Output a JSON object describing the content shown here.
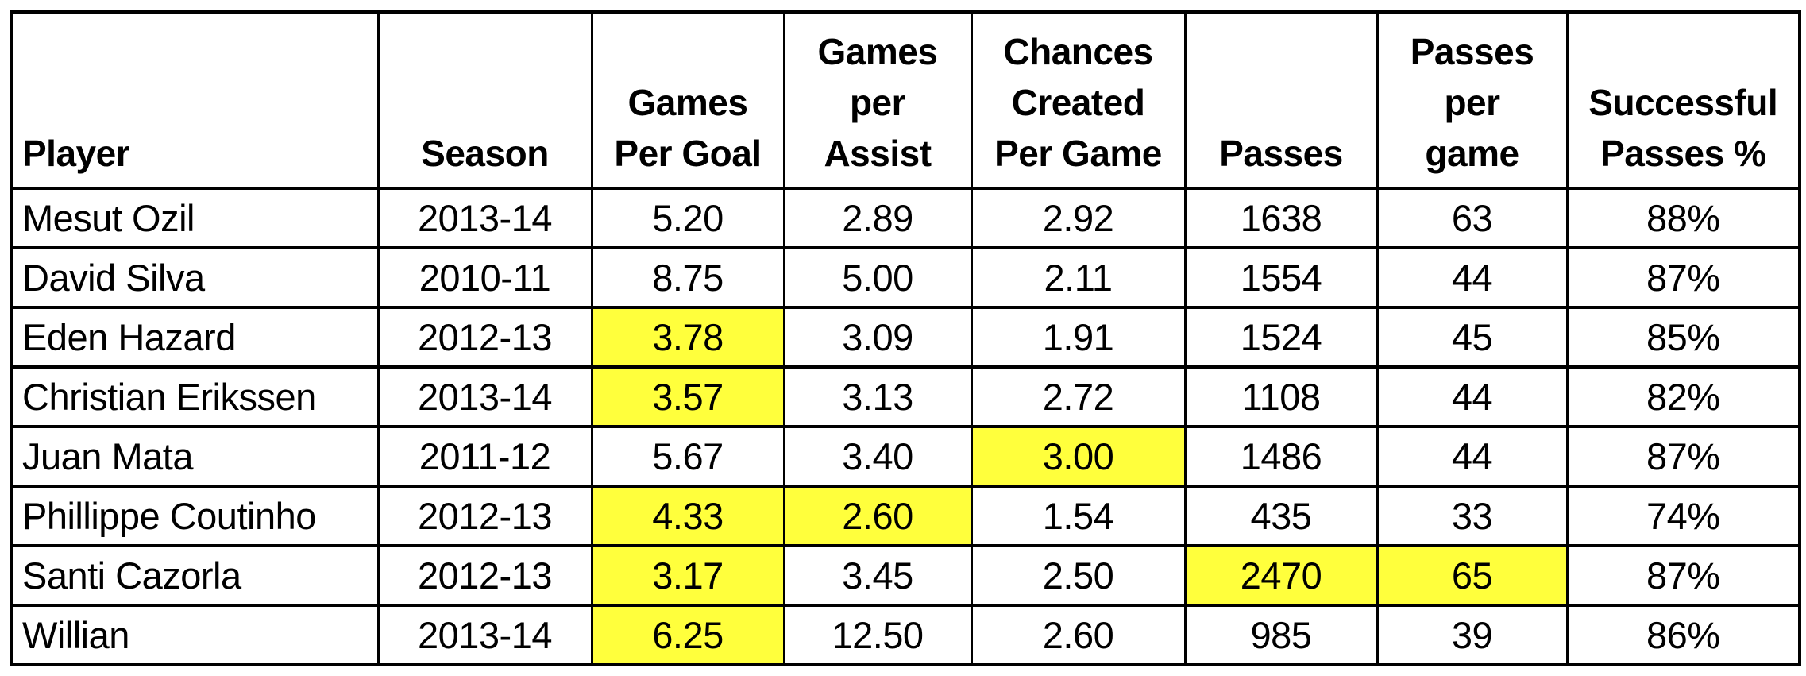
{
  "colors": {
    "background": "#FFFFFF",
    "border": "#000000",
    "text": "#000000",
    "highlight": "#FFFF3C"
  },
  "table": {
    "columns": [
      {
        "key": "player",
        "label": "Player",
        "lines": [
          "Player"
        ],
        "align": "left"
      },
      {
        "key": "season",
        "label": "Season",
        "lines": [
          "Season"
        ],
        "align": "center"
      },
      {
        "key": "games_per_goal",
        "label": "Games Per Goal",
        "lines": [
          "Games",
          "Per Goal"
        ],
        "align": "center"
      },
      {
        "key": "games_per_assist",
        "label": "Games per Assist",
        "lines": [
          "Games",
          "per",
          "Assist"
        ],
        "align": "center"
      },
      {
        "key": "chances_created_per_game",
        "label": "Chances Created Per Game",
        "lines": [
          "Chances",
          "Created",
          "Per Game"
        ],
        "align": "center"
      },
      {
        "key": "passes",
        "label": "Passes",
        "lines": [
          "Passes"
        ],
        "align": "center"
      },
      {
        "key": "passes_per_game",
        "label": "Passes per game",
        "lines": [
          "Passes",
          "per",
          "game"
        ],
        "align": "center"
      },
      {
        "key": "successful_passes_pct",
        "label": "Successful Passes %",
        "lines": [
          "Successful",
          "Passes %"
        ],
        "align": "center"
      }
    ],
    "rows": [
      {
        "values": [
          "Mesut Ozil",
          "2013-14",
          "5.20",
          "2.89",
          "2.92",
          "1638",
          "63",
          "88%"
        ],
        "highlights": []
      },
      {
        "values": [
          "David Silva",
          "2010-11",
          "8.75",
          "5.00",
          "2.11",
          "1554",
          "44",
          "87%"
        ],
        "highlights": []
      },
      {
        "values": [
          "Eden Hazard",
          "2012-13",
          "3.78",
          "3.09",
          "1.91",
          "1524",
          "45",
          "85%"
        ],
        "highlights": [
          "games_per_goal"
        ]
      },
      {
        "values": [
          "Christian Erikssen",
          "2013-14",
          "3.57",
          "3.13",
          "2.72",
          "1108",
          "44",
          "82%"
        ],
        "highlights": [
          "games_per_goal"
        ]
      },
      {
        "values": [
          "Juan Mata",
          "2011-12",
          "5.67",
          "3.40",
          "3.00",
          "1486",
          "44",
          "87%"
        ],
        "highlights": [
          "chances_created_per_game"
        ]
      },
      {
        "values": [
          "Phillippe Coutinho",
          "2012-13",
          "4.33",
          "2.60",
          "1.54",
          "435",
          "33",
          "74%"
        ],
        "highlights": [
          "games_per_goal",
          "games_per_assist"
        ]
      },
      {
        "values": [
          "Santi Cazorla",
          "2012-13",
          "3.17",
          "3.45",
          "2.50",
          "2470",
          "65",
          "87%"
        ],
        "highlights": [
          "games_per_goal",
          "passes",
          "passes_per_game"
        ]
      },
      {
        "values": [
          "Willian",
          "2013-14",
          "6.25",
          "12.50",
          "2.60",
          "985",
          "39",
          "86%"
        ],
        "highlights": [
          "games_per_goal"
        ]
      }
    ]
  },
  "chart_data": {
    "type": "table",
    "columns": [
      "Player",
      "Season",
      "Games Per Goal",
      "Games per Assist",
      "Chances Created Per Game",
      "Passes",
      "Passes per game",
      "Successful Passes %"
    ],
    "rows": [
      [
        "Mesut Ozil",
        "2013-14",
        5.2,
        2.89,
        2.92,
        1638,
        63,
        "88%"
      ],
      [
        "David Silva",
        "2010-11",
        8.75,
        5.0,
        2.11,
        1554,
        44,
        "87%"
      ],
      [
        "Eden Hazard",
        "2012-13",
        3.78,
        3.09,
        1.91,
        1524,
        45,
        "85%"
      ],
      [
        "Christian Erikssen",
        "2013-14",
        3.57,
        3.13,
        2.72,
        1108,
        44,
        "82%"
      ],
      [
        "Juan Mata",
        "2011-12",
        5.67,
        3.4,
        3.0,
        1486,
        44,
        "87%"
      ],
      [
        "Phillippe Coutinho",
        "2012-13",
        4.33,
        2.6,
        1.54,
        435,
        33,
        "74%"
      ],
      [
        "Santi Cazorla",
        "2012-13",
        3.17,
        3.45,
        2.5,
        2470,
        65,
        "87%"
      ],
      [
        "Willian",
        "2013-14",
        6.25,
        12.5,
        2.6,
        985,
        39,
        "86%"
      ]
    ],
    "highlighted_cells": [
      {
        "row": "Eden Hazard",
        "column": "Games Per Goal",
        "value": 3.78
      },
      {
        "row": "Christian Erikssen",
        "column": "Games Per Goal",
        "value": 3.57
      },
      {
        "row": "Juan Mata",
        "column": "Chances Created Per Game",
        "value": 3.0
      },
      {
        "row": "Phillippe Coutinho",
        "column": "Games Per Goal",
        "value": 4.33
      },
      {
        "row": "Phillippe Coutinho",
        "column": "Games per Assist",
        "value": 2.6
      },
      {
        "row": "Santi Cazorla",
        "column": "Games Per Goal",
        "value": 3.17
      },
      {
        "row": "Santi Cazorla",
        "column": "Passes",
        "value": 2470
      },
      {
        "row": "Santi Cazorla",
        "column": "Passes per game",
        "value": 65
      },
      {
        "row": "Willian",
        "column": "Games Per Goal",
        "value": 6.25
      }
    ],
    "highlight_color": "#FFFF3C",
    "title": "",
    "grid": true,
    "legend": false
  }
}
